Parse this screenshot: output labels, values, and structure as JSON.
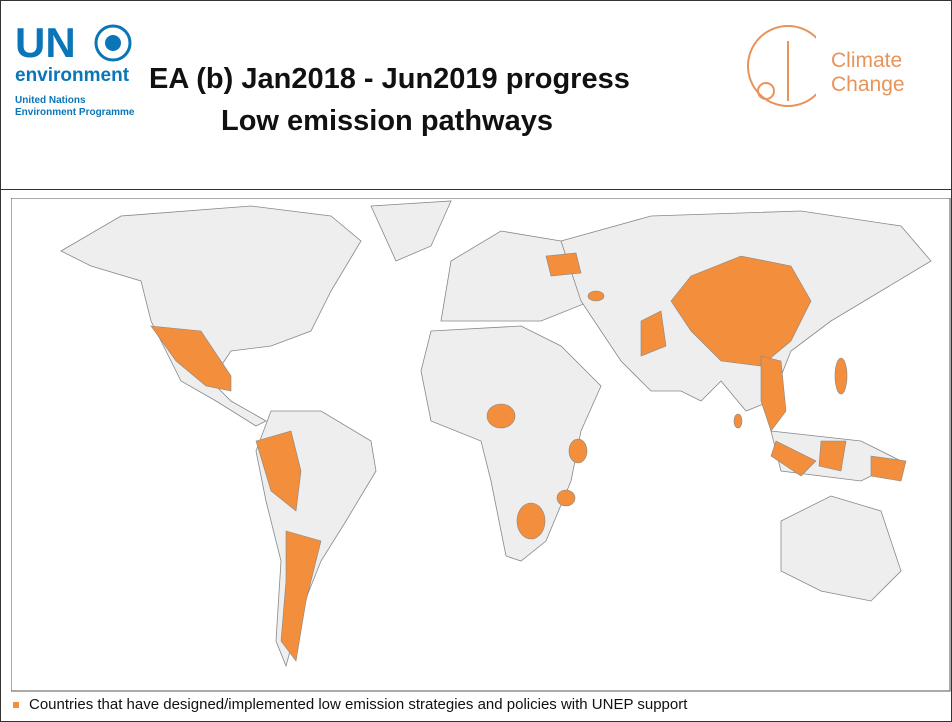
{
  "header": {
    "logo_un": "UN",
    "logo_environment": "environment",
    "logo_line1": "United Nations",
    "logo_line2": "Environment Programme",
    "title_line1": "EA (b)  Jan2018 - Jun2019 progress",
    "title_line2": "Low emission pathways",
    "badge_line1": "Climate",
    "badge_line2": "Change"
  },
  "caption": "Countries that have designed/implemented low emission strategies and policies with UNEP support"
}
